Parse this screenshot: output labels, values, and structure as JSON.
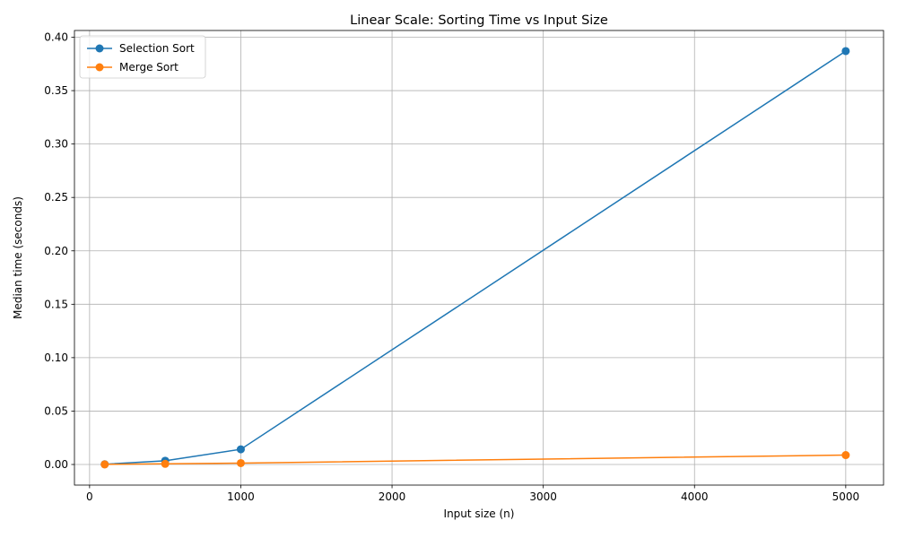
{
  "chart_data": {
    "type": "line",
    "title": "Linear Scale: Sorting Time vs Input Size",
    "xlabel": "Input size (n)",
    "ylabel": "Median time (seconds)",
    "xlim": [
      -100,
      5250
    ],
    "ylim": [
      -0.0193,
      0.4063
    ],
    "x_ticks": [
      0,
      1000,
      2000,
      3000,
      4000,
      5000
    ],
    "x_tick_labels": [
      "0",
      "1000",
      "2000",
      "3000",
      "4000",
      "5000"
    ],
    "y_ticks": [
      0,
      0.05,
      0.1,
      0.15,
      0.2,
      0.25,
      0.3,
      0.35,
      0.4
    ],
    "y_tick_labels": [
      "0.00",
      "0.05",
      "0.10",
      "0.15",
      "0.20",
      "0.25",
      "0.30",
      "0.35",
      "0.40"
    ],
    "grid": true,
    "legend_position": "top-left",
    "series": [
      {
        "name": "Selection Sort",
        "color": "#1f77b4",
        "marker": "circle",
        "x": [
          100,
          500,
          1000,
          5000
        ],
        "y": [
          0.0002,
          0.0035,
          0.0142,
          0.387
        ]
      },
      {
        "name": "Merge Sort",
        "color": "#ff7f0e",
        "marker": "circle",
        "x": [
          100,
          500,
          1000,
          5000
        ],
        "y": [
          0.0001,
          0.0006,
          0.0013,
          0.0088
        ]
      }
    ]
  }
}
